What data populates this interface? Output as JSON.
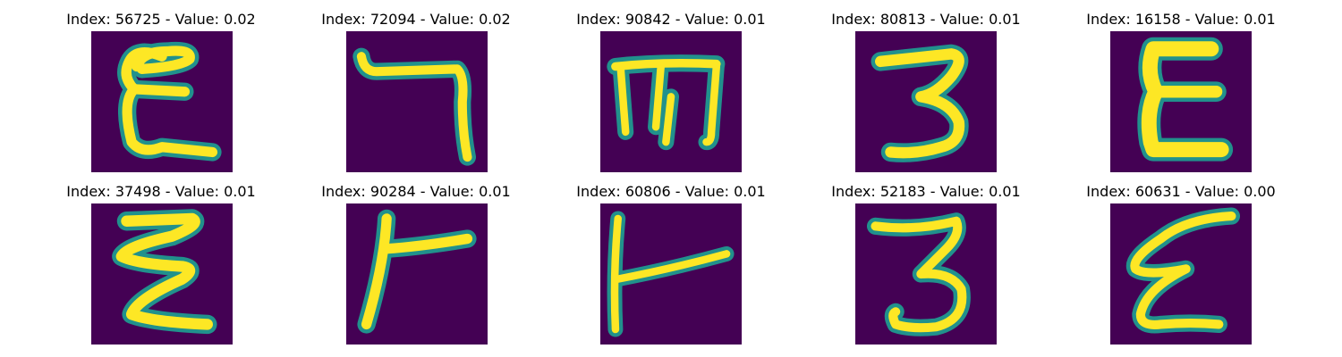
{
  "colormap": {
    "background": "#440154",
    "edge": "#21918c",
    "edge_light": "#5ec962",
    "foreground": "#fde725"
  },
  "panels": [
    {
      "title": "Index: 56725 - Value: 0.02",
      "glyph_icon": "epsilon-like-glyph-image"
    },
    {
      "title": "Index: 72094 - Value: 0.02",
      "glyph_icon": "seven-like-glyph-image"
    },
    {
      "title": "Index: 90842 - Value: 0.01",
      "glyph_icon": "rotated-m-glyph-image"
    },
    {
      "title": "Index: 80813 - Value: 0.01",
      "glyph_icon": "three-glyph-image"
    },
    {
      "title": "Index: 16158 - Value: 0.01",
      "glyph_icon": "blocky-e-glyph-image"
    },
    {
      "title": "Index: 37498 - Value: 0.01",
      "glyph_icon": "stacked-z-glyph-image"
    },
    {
      "title": "Index: 90284 - Value: 0.01",
      "glyph_icon": "sideways-t-glyph-image"
    },
    {
      "title": "Index: 60806 - Value: 0.01",
      "glyph_icon": "sideways-t-thin-glyph-image"
    },
    {
      "title": "Index: 52183 - Value: 0.01",
      "glyph_icon": "three-glyph-image"
    },
    {
      "title": "Index: 60631 - Value: 0.00",
      "glyph_icon": "slanted-epsilon-glyph-image"
    }
  ]
}
